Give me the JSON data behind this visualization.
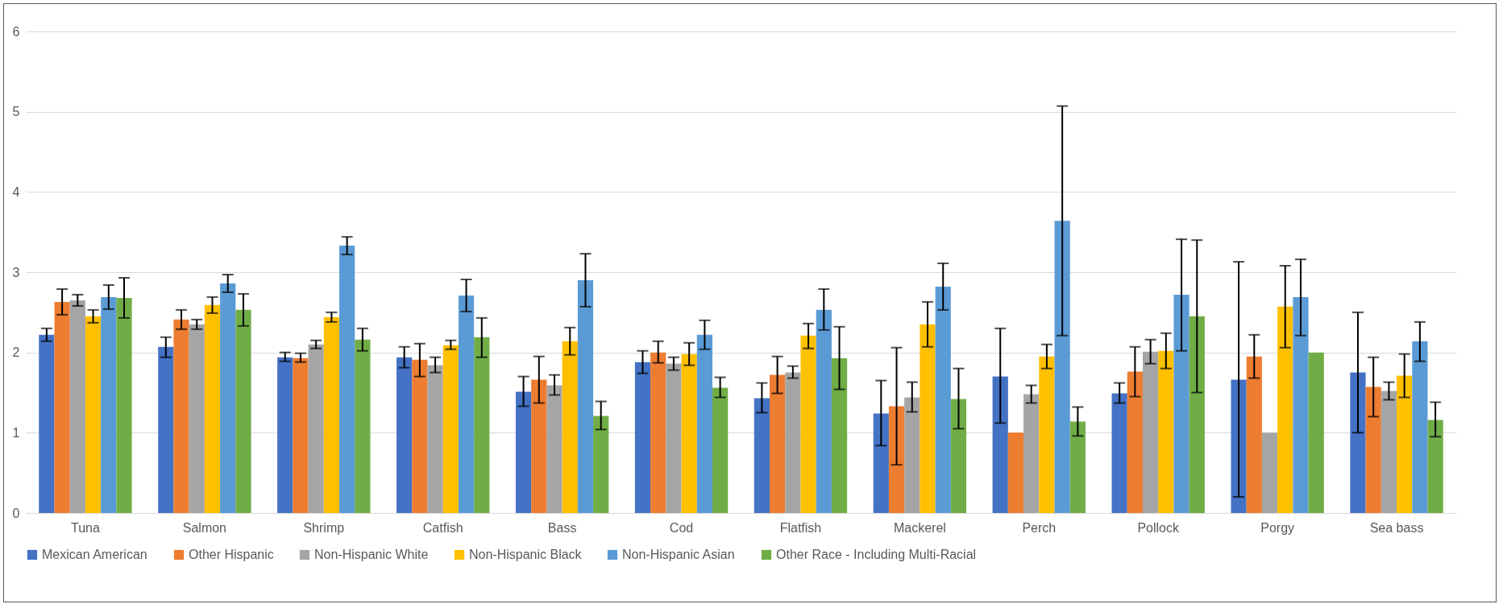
{
  "chart_data": {
    "type": "bar",
    "categories": [
      "Tuna",
      "Salmon",
      "Shrimp",
      "Catfish",
      "Bass",
      "Cod",
      "Flatfish",
      "Mackerel",
      "Perch",
      "Pollock",
      "Porgy",
      "Sea bass"
    ],
    "series": [
      {
        "name": "Mexican American",
        "color": "#4472c4",
        "values": [
          2.22,
          2.07,
          1.94,
          1.94,
          1.51,
          1.88,
          1.43,
          1.24,
          1.7,
          1.49,
          1.66,
          1.75
        ],
        "errors": [
          [
            2.14,
            2.3
          ],
          [
            1.94,
            2.19
          ],
          [
            1.89,
            2.0
          ],
          [
            1.81,
            2.07
          ],
          [
            1.33,
            1.7
          ],
          [
            1.74,
            2.02
          ],
          [
            1.25,
            1.62
          ],
          [
            0.84,
            1.65
          ],
          [
            1.12,
            2.3
          ],
          [
            1.37,
            1.62
          ],
          [
            0.2,
            3.13
          ],
          [
            1.0,
            2.5
          ]
        ]
      },
      {
        "name": "Other Hispanic",
        "color": "#ed7d31",
        "values": [
          2.63,
          2.41,
          1.93,
          1.91,
          1.66,
          2.0,
          1.72,
          1.33,
          1.0,
          1.76,
          1.95,
          1.57
        ],
        "errors": [
          [
            2.47,
            2.79
          ],
          [
            2.29,
            2.53
          ],
          [
            1.88,
            1.99
          ],
          [
            1.7,
            2.11
          ],
          [
            1.37,
            1.95
          ],
          [
            1.87,
            2.14
          ],
          [
            1.49,
            1.95
          ],
          [
            0.6,
            2.06
          ],
          null,
          [
            1.45,
            2.07
          ],
          [
            1.68,
            2.22
          ],
          [
            1.2,
            1.94
          ]
        ]
      },
      {
        "name": "Non-Hispanic White",
        "color": "#a5a5a5",
        "values": [
          2.65,
          2.35,
          2.1,
          1.84,
          1.59,
          1.86,
          1.75,
          1.44,
          1.48,
          2.01,
          1.0,
          1.52
        ],
        "errors": [
          [
            2.58,
            2.72
          ],
          [
            2.29,
            2.41
          ],
          [
            2.05,
            2.15
          ],
          [
            1.75,
            1.94
          ],
          [
            1.47,
            1.72
          ],
          [
            1.78,
            1.94
          ],
          [
            1.68,
            1.83
          ],
          [
            1.26,
            1.63
          ],
          [
            1.37,
            1.59
          ],
          [
            1.86,
            2.16
          ],
          null,
          [
            1.41,
            1.63
          ]
        ]
      },
      {
        "name": "Non-Hispanic Black",
        "color": "#ffc000",
        "values": [
          2.45,
          2.59,
          2.44,
          2.09,
          2.14,
          1.98,
          2.21,
          2.35,
          1.95,
          2.02,
          2.57,
          1.71
        ],
        "errors": [
          [
            2.37,
            2.53
          ],
          [
            2.49,
            2.69
          ],
          [
            2.38,
            2.5
          ],
          [
            2.04,
            2.15
          ],
          [
            1.97,
            2.31
          ],
          [
            1.84,
            2.12
          ],
          [
            2.05,
            2.36
          ],
          [
            2.07,
            2.63
          ],
          [
            1.8,
            2.1
          ],
          [
            1.8,
            2.24
          ],
          [
            2.06,
            3.08
          ],
          [
            1.44,
            1.98
          ]
        ]
      },
      {
        "name": "Non-Hispanic Asian",
        "color": "#5b9bd5",
        "values": [
          2.69,
          2.86,
          3.33,
          2.71,
          2.9,
          2.22,
          2.53,
          2.82,
          3.64,
          2.72,
          2.69,
          2.14
        ],
        "errors": [
          [
            2.54,
            2.84
          ],
          [
            2.75,
            2.97
          ],
          [
            3.22,
            3.44
          ],
          [
            2.51,
            2.91
          ],
          [
            2.57,
            3.23
          ],
          [
            2.04,
            2.4
          ],
          [
            2.28,
            2.79
          ],
          [
            2.53,
            3.11
          ],
          [
            2.21,
            5.07
          ],
          [
            2.02,
            3.41
          ],
          [
            2.21,
            3.16
          ],
          [
            1.89,
            2.38
          ]
        ]
      },
      {
        "name": "Other Race - Including Multi-Racial",
        "color": "#70ad47",
        "values": [
          2.68,
          2.53,
          2.16,
          2.19,
          1.21,
          1.56,
          1.93,
          1.42,
          1.14,
          2.45,
          2.0,
          1.16
        ],
        "errors": [
          [
            2.43,
            2.93
          ],
          [
            2.33,
            2.73
          ],
          [
            2.02,
            2.3
          ],
          [
            1.94,
            2.43
          ],
          [
            1.04,
            1.39
          ],
          [
            1.44,
            1.69
          ],
          [
            1.54,
            2.32
          ],
          [
            1.05,
            1.8
          ],
          [
            0.96,
            1.32
          ],
          [
            1.5,
            3.4
          ],
          null,
          [
            0.95,
            1.38
          ]
        ]
      }
    ],
    "ylim": [
      0,
      6
    ],
    "yticks": [
      0,
      1,
      2,
      3,
      4,
      5,
      6
    ],
    "grid": "y",
    "legend": "bottom"
  }
}
